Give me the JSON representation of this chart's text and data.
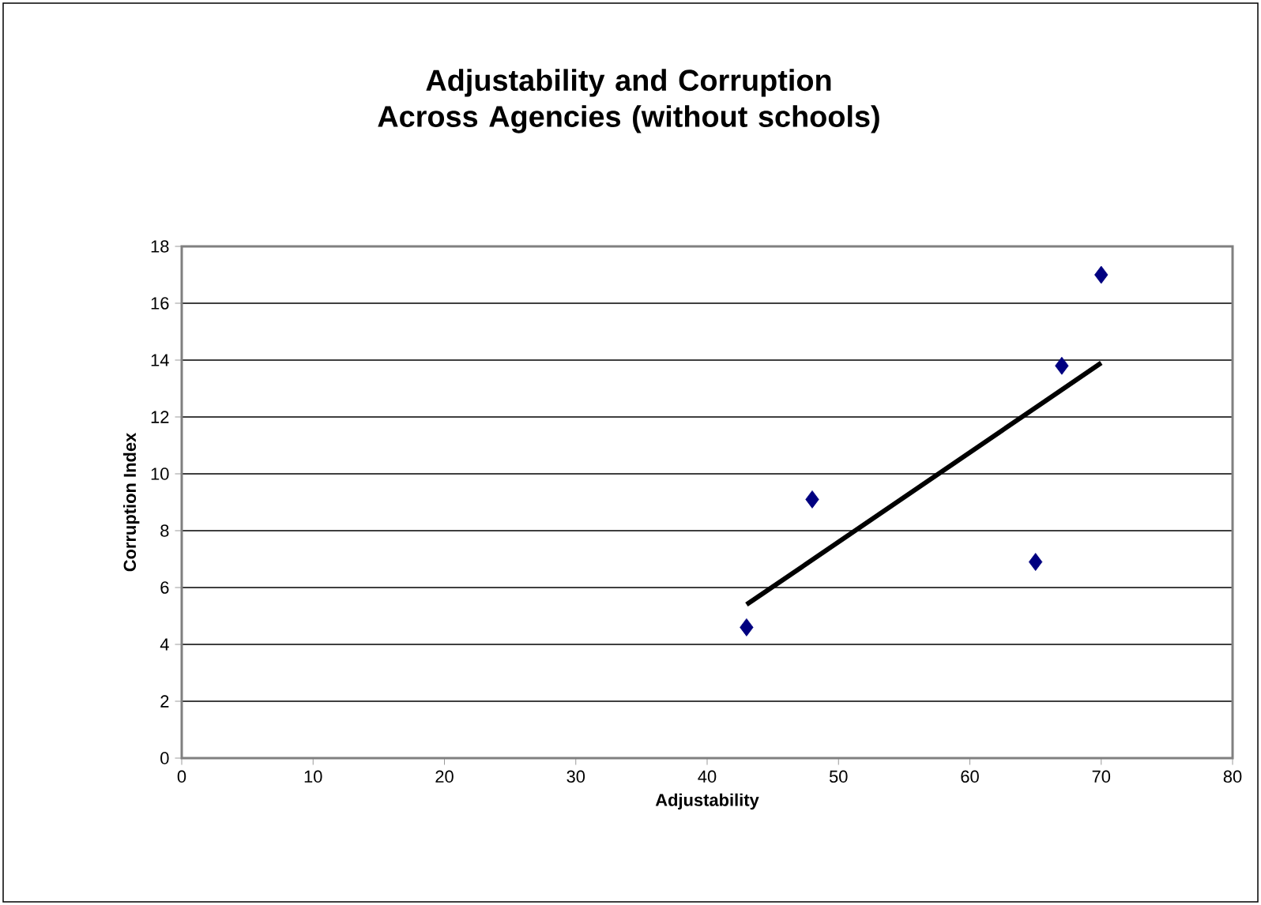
{
  "chart_data": {
    "type": "scatter",
    "title": "Adjustability and Corruption Across Agencies (without schools)",
    "xlabel": "Adjustability",
    "ylabel": "Corruption Index",
    "series": [
      {
        "color": "#000080",
        "marker": "diamond",
        "x": [
          43,
          48,
          65,
          67,
          70
        ],
        "values": [
          4.6,
          9.1,
          6.9,
          13.8,
          17
        ]
      },
      {
        "type": "line",
        "color": "#000000",
        "marker": "none",
        "line_style": "solid",
        "x": [
          43,
          70
        ],
        "values": [
          5.4,
          13.9
        ]
      }
    ],
    "xlim": [
      0,
      80
    ],
    "xticks": [
      0,
      10,
      20,
      30,
      40,
      50,
      60,
      70,
      80
    ],
    "ylim": [
      0,
      18
    ],
    "yticks": [
      0,
      2,
      4,
      6,
      8,
      10,
      12,
      14,
      16,
      18
    ],
    "grid": "y"
  }
}
